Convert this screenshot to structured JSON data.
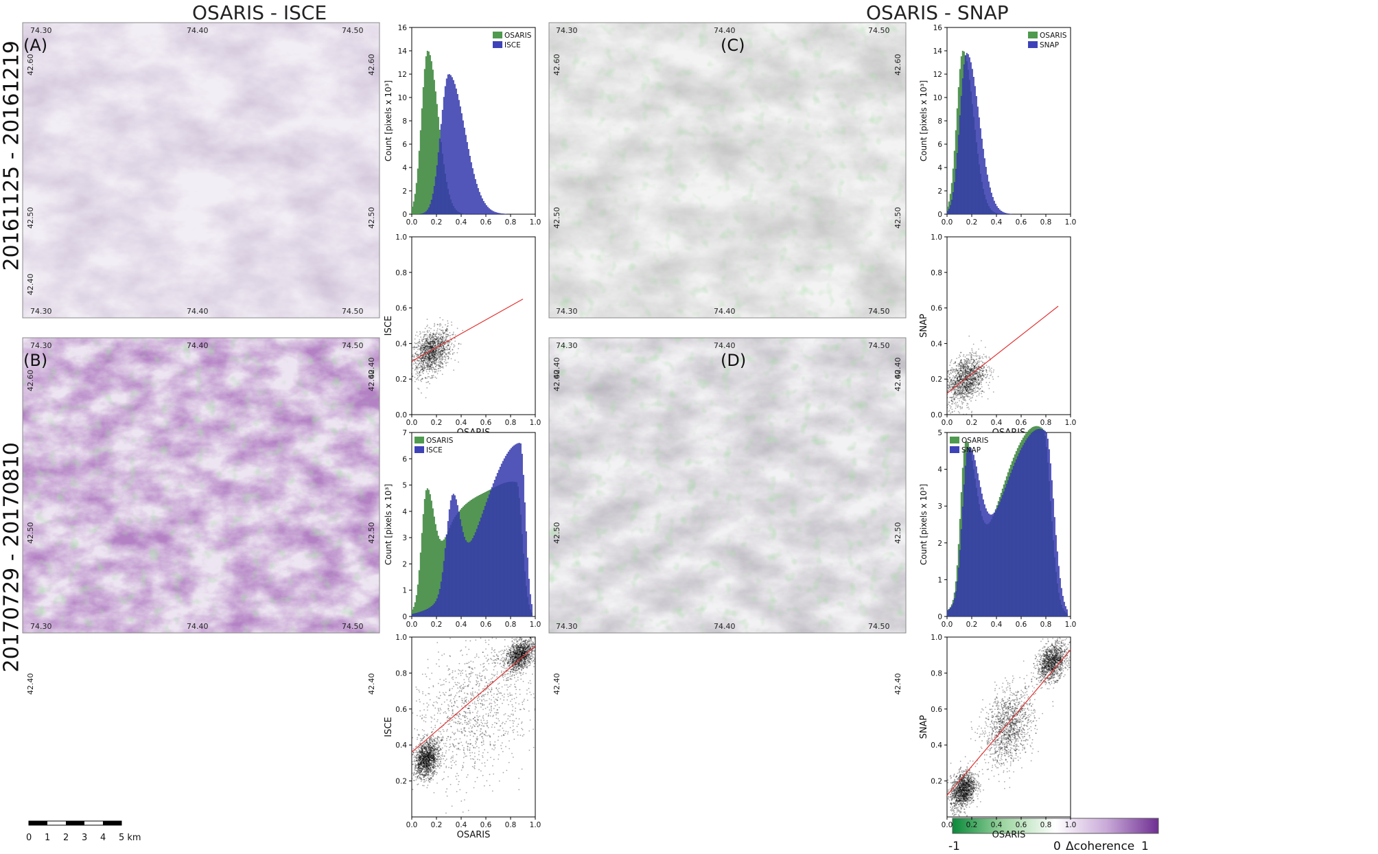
{
  "headers": {
    "left": "OSARIS - ISCE",
    "right": "OSARIS - SNAP"
  },
  "row_labels": {
    "top": "20161125 - 20161219",
    "bottom": "20170729 - 20170810"
  },
  "maps": [
    {
      "label": "(A)",
      "style": "light-purple"
    },
    {
      "label": "(B)",
      "style": "strong-purple"
    },
    {
      "label": "(C)",
      "style": "grey"
    },
    {
      "label": "(D)",
      "style": "grey-mixed"
    }
  ],
  "map_ticks": {
    "lon": [
      "74.30",
      "74.40",
      "74.50"
    ],
    "lat": [
      "42.60",
      "42.50",
      "42.40"
    ]
  },
  "scale_bar": {
    "labels": [
      "0",
      "1",
      "2",
      "3",
      "4",
      "5 km"
    ]
  },
  "colorbar": {
    "min_label": "-1",
    "mid_label": "0",
    "title": "Δcoherence",
    "max_label": "1",
    "colors": [
      "#0a8a3a",
      "#9fd6a2",
      "#ffffff",
      "#c9a9d8",
      "#6f2f93"
    ]
  },
  "colors": {
    "osaris": "#4e9a4e",
    "isce": "#3e42b8",
    "snap": "#3e42b8",
    "regression": "#e23030",
    "scatter": "#000000"
  },
  "chart_data": [
    {
      "id": "hist_A",
      "type": "bar",
      "description_row": "top",
      "xlim": [
        0,
        1.0
      ],
      "ylim": [
        0,
        16
      ],
      "xticks": [
        "0.0",
        "0.2",
        "0.4",
        "0.6",
        "0.8",
        "1.0"
      ],
      "yticks": [
        "0",
        "2",
        "4",
        "6",
        "8",
        "10",
        "12",
        "14",
        "16"
      ],
      "ylabel": "Count [pixels x 10³]",
      "series": [
        {
          "name": "OSARIS",
          "peaks": [
            {
              "x": 0.13,
              "y": 14.0,
              "sl": 0.05,
              "sr": 0.085
            }
          ]
        },
        {
          "name": "ISCE",
          "peaks": [
            {
              "x": 0.3,
              "y": 12.0,
              "sl": 0.065,
              "sr": 0.13
            }
          ]
        }
      ]
    },
    {
      "id": "scatter_A",
      "type": "scatter",
      "xlim": [
        0,
        1.0
      ],
      "ylim": [
        0,
        1.0
      ],
      "xticks": [
        "0.0",
        "0.2",
        "0.4",
        "0.6",
        "0.8",
        "1.0"
      ],
      "yticks": [
        "0.0",
        "0.2",
        "0.4",
        "0.6",
        "0.8",
        "1.0"
      ],
      "xlabel": "OSARIS",
      "ylabel": "ISCE",
      "regression": {
        "x0": 0.0,
        "y0": 0.3,
        "x1": 0.9,
        "y1": 0.65
      },
      "clusters": [
        {
          "x": 0.16,
          "y": 0.35,
          "sx": 0.08,
          "sy": 0.06
        }
      ]
    },
    {
      "id": "hist_C",
      "type": "bar",
      "description_row": "top",
      "xlim": [
        0,
        1.0
      ],
      "ylim": [
        0,
        16
      ],
      "xticks": [
        "0.0",
        "0.2",
        "0.4",
        "0.6",
        "0.8",
        "1.0"
      ],
      "yticks": [
        "0",
        "2",
        "4",
        "6",
        "8",
        "10",
        "12",
        "14",
        "16"
      ],
      "ylabel": "Count [pixels x 10³]",
      "series": [
        {
          "name": "OSARIS",
          "peaks": [
            {
              "x": 0.13,
              "y": 14.0,
              "sl": 0.05,
              "sr": 0.085
            }
          ]
        },
        {
          "name": "SNAP",
          "peaks": [
            {
              "x": 0.16,
              "y": 13.8,
              "sl": 0.055,
              "sr": 0.1
            }
          ]
        }
      ]
    },
    {
      "id": "scatter_C",
      "type": "scatter",
      "xlim": [
        0,
        1.0
      ],
      "ylim": [
        0,
        1.0
      ],
      "xticks": [
        "0.0",
        "0.2",
        "0.4",
        "0.6",
        "0.8",
        "1.0"
      ],
      "yticks": [
        "0.0",
        "0.2",
        "0.4",
        "0.6",
        "0.8",
        "1.0"
      ],
      "xlabel": "OSARIS",
      "ylabel": "SNAP",
      "regression": {
        "x0": 0.0,
        "y0": 0.12,
        "x1": 0.9,
        "y1": 0.61
      },
      "clusters": [
        {
          "x": 0.15,
          "y": 0.2,
          "sx": 0.08,
          "sy": 0.065
        }
      ]
    },
    {
      "id": "hist_B",
      "type": "bar",
      "description_row": "bottom",
      "xlim": [
        0,
        1.0
      ],
      "ylim": [
        0,
        7
      ],
      "xticks": [
        "0.0",
        "0.2",
        "0.4",
        "0.6",
        "0.8",
        "1.0"
      ],
      "yticks": [
        "0",
        "1",
        "2",
        "3",
        "4",
        "5",
        "6",
        "7"
      ],
      "ylabel": "Count [pixels x 10³]",
      "series": [
        {
          "name": "OSARIS",
          "peaks": [
            {
              "x": 0.12,
              "y": 4.1,
              "sl": 0.04,
              "sr": 0.06
            },
            {
              "x": 0.85,
              "y": 5.0,
              "sl": 0.32,
              "sr": 0.045
            },
            {
              "x": 0.35,
              "y": 2.3,
              "sl": 0.12,
              "sr": 0.2
            }
          ]
        },
        {
          "name": "ISCE",
          "peaks": [
            {
              "x": 0.33,
              "y": 3.4,
              "sl": 0.05,
              "sr": 0.06
            },
            {
              "x": 0.88,
              "y": 6.6,
              "sl": 0.3,
              "sr": 0.04
            }
          ]
        }
      ]
    },
    {
      "id": "scatter_B",
      "type": "scatter",
      "xlim": [
        0,
        1.0
      ],
      "ylim": [
        0,
        1.0
      ],
      "xticks": [
        "0.0",
        "0.2",
        "0.4",
        "0.6",
        "0.8",
        "1.0"
      ],
      "yticks": [
        "0.2",
        "0.4",
        "0.6",
        "0.8",
        "1.0"
      ],
      "xlabel": "OSARIS",
      "ylabel": "ISCE",
      "regression": {
        "x0": 0.0,
        "y0": 0.36,
        "x1": 1.0,
        "y1": 0.95
      },
      "clusters": [
        {
          "x": 0.12,
          "y": 0.32,
          "sx": 0.05,
          "sy": 0.05
        },
        {
          "x": 0.88,
          "y": 0.9,
          "sx": 0.06,
          "sy": 0.04
        },
        {
          "x": 0.5,
          "y": 0.6,
          "sx": 0.25,
          "sy": 0.2
        }
      ]
    },
    {
      "id": "hist_D",
      "type": "bar",
      "description_row": "bottom",
      "xlim": [
        0,
        1.0
      ],
      "ylim": [
        0,
        5
      ],
      "xticks": [
        "0.0",
        "0.2",
        "0.4",
        "0.6",
        "0.8",
        "1.0"
      ],
      "yticks": [
        "0",
        "1",
        "2",
        "3",
        "4",
        "5"
      ],
      "ylabel": "Count [pixels x 10³]",
      "series": [
        {
          "name": "OSARIS",
          "peaks": [
            {
              "x": 0.15,
              "y": 4.05,
              "sl": 0.04,
              "sr": 0.08
            },
            {
              "x": 0.78,
              "y": 4.7,
              "sl": 0.25,
              "sr": 0.06
            },
            {
              "x": 0.45,
              "y": 1.5,
              "sl": 0.2,
              "sr": 0.2
            }
          ]
        },
        {
          "name": "SNAP",
          "peaks": [
            {
              "x": 0.17,
              "y": 3.8,
              "sl": 0.045,
              "sr": 0.09
            },
            {
              "x": 0.8,
              "y": 4.7,
              "sl": 0.25,
              "sr": 0.065
            },
            {
              "x": 0.45,
              "y": 1.5,
              "sl": 0.2,
              "sr": 0.2
            }
          ]
        }
      ]
    },
    {
      "id": "scatter_D",
      "type": "scatter",
      "xlim": [
        0,
        1.0
      ],
      "ylim": [
        0,
        1.0
      ],
      "xticks": [
        "0.0",
        "0.2",
        "0.4",
        "0.6",
        "0.8",
        "1.0"
      ],
      "yticks": [
        "0.2",
        "0.4",
        "0.6",
        "0.8",
        "1.0"
      ],
      "xlabel": "OSARIS",
      "ylabel": "SNAP",
      "regression": {
        "x0": 0.0,
        "y0": 0.12,
        "x1": 1.0,
        "y1": 0.93
      },
      "clusters": [
        {
          "x": 0.13,
          "y": 0.15,
          "sx": 0.05,
          "sy": 0.05
        },
        {
          "x": 0.85,
          "y": 0.86,
          "sx": 0.06,
          "sy": 0.05
        },
        {
          "x": 0.5,
          "y": 0.5,
          "sx": 0.1,
          "sy": 0.1
        }
      ]
    }
  ]
}
